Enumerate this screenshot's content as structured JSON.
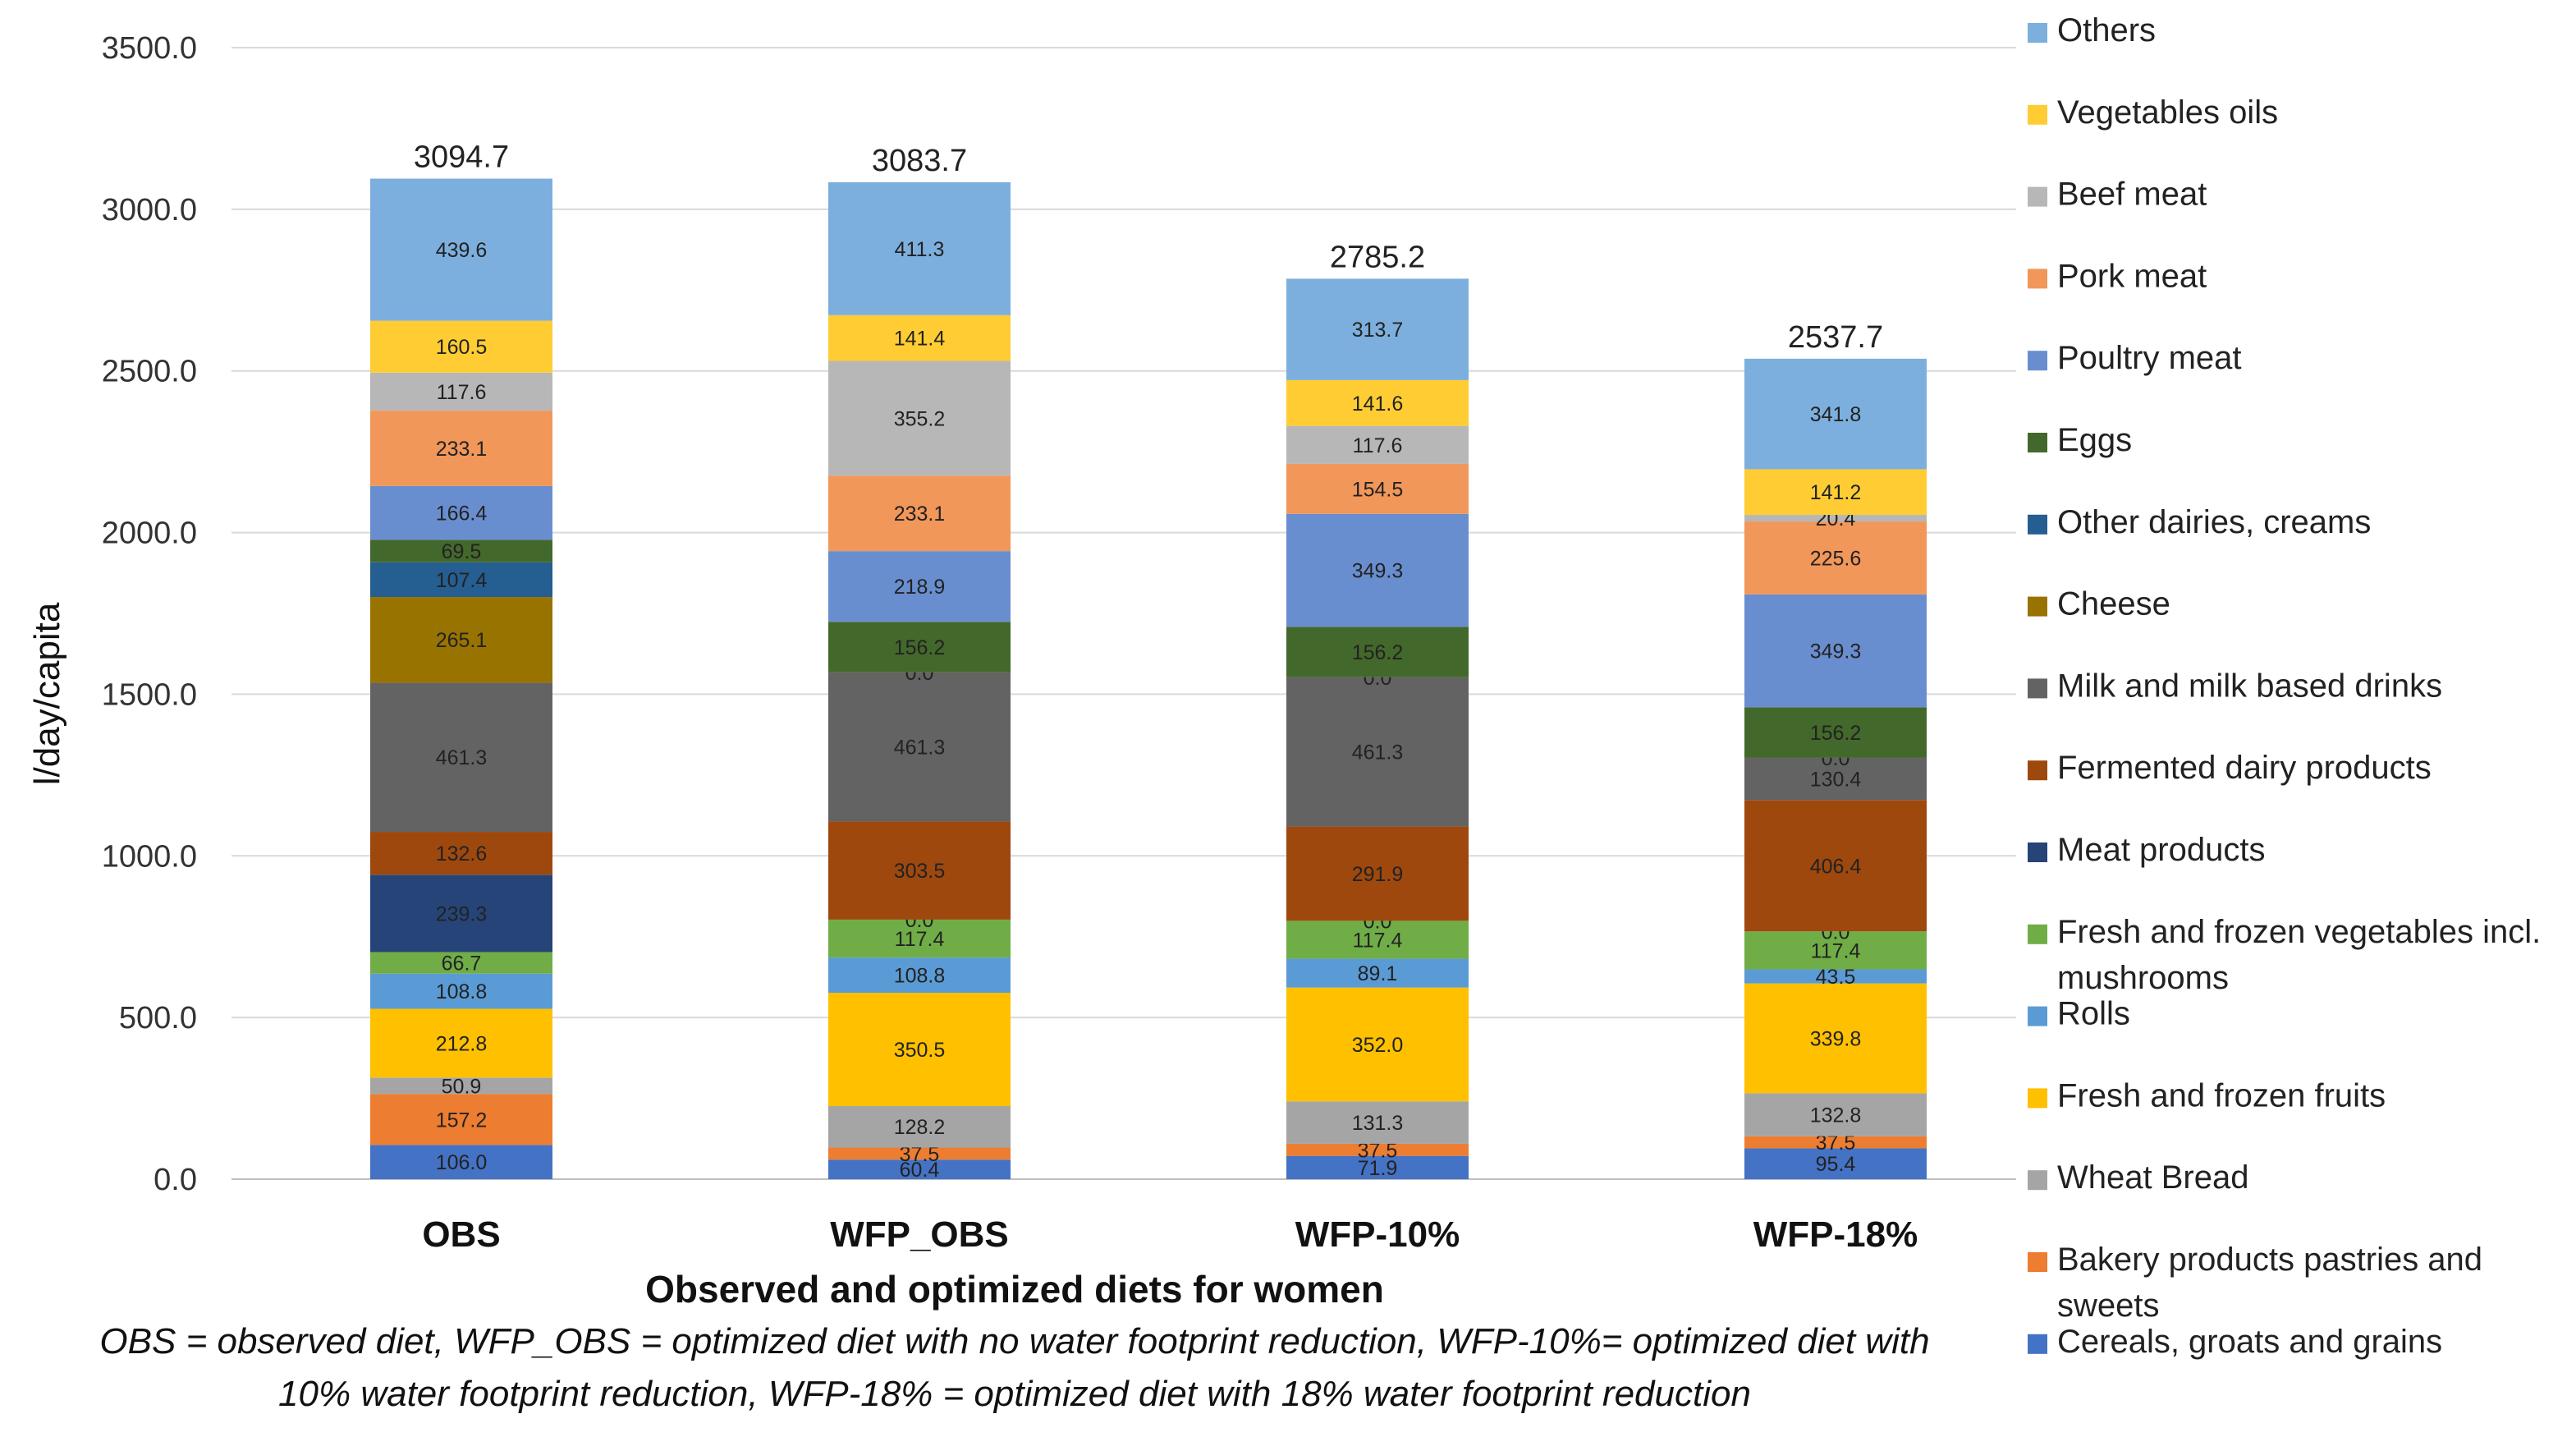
{
  "chart_data": {
    "type": "bar",
    "stacked": true,
    "title": "",
    "xlabel": "Observed and optimized diets for women",
    "ylabel": "l/day/capita",
    "ylim": [
      0,
      3500
    ],
    "yticks": [
      "0.0",
      "500.0",
      "1000.0",
      "1500.0",
      "2000.0",
      "2500.0",
      "3000.0",
      "3500.0"
    ],
    "grid": true,
    "legend_position": "right",
    "categories": [
      "OBS",
      "WFP_OBS",
      "WFP-10%",
      "WFP-18%"
    ],
    "totals": [
      "3094.7",
      "3083.7",
      "2785.2",
      "2537.7"
    ],
    "series": [
      {
        "name": "Cereals, groats and grains",
        "color": "#4472C4",
        "values": [
          106.0,
          60.4,
          71.9,
          95.4
        ],
        "labels": [
          "106.0",
          "60.4",
          "71.9",
          "95.4"
        ]
      },
      {
        "name": "Bakery products pastries and sweets",
        "color": "#ED7D31",
        "values": [
          157.2,
          37.5,
          37.5,
          37.5
        ],
        "labels": [
          "157.2",
          "37.5",
          "37.5",
          "37.5"
        ]
      },
      {
        "name": "Wheat Bread",
        "color": "#A5A5A5",
        "values": [
          50.9,
          128.2,
          131.3,
          132.8
        ],
        "labels": [
          "50.9",
          "128.2",
          "131.3",
          "132.8"
        ]
      },
      {
        "name": "Fresh and frozen fruits",
        "color": "#FFC000",
        "values": [
          212.8,
          350.5,
          352.0,
          339.8
        ],
        "labels": [
          "212.8",
          "350.5",
          "352.0",
          "339.8"
        ]
      },
      {
        "name": "Rolls",
        "color": "#5B9BD5",
        "values": [
          108.8,
          108.8,
          89.1,
          43.5
        ],
        "labels": [
          "108.8",
          "108.8",
          "89.1",
          "43.5"
        ]
      },
      {
        "name": "Fresh and frozen vegetables incl. mushrooms",
        "color": "#70AD47",
        "values": [
          66.7,
          117.4,
          117.4,
          117.4
        ],
        "labels": [
          "66.7",
          "117.4",
          "117.4",
          "117.4"
        ]
      },
      {
        "name": "Meat products",
        "color": "#264478",
        "values": [
          239.3,
          0.0,
          0.0,
          0.0
        ],
        "labels": [
          "239.3",
          "0.0",
          "0.0",
          "0.0"
        ]
      },
      {
        "name": "Fermented dairy products",
        "color": "#9E480E",
        "values": [
          132.6,
          303.5,
          291.9,
          406.4
        ],
        "labels": [
          "132.6",
          "303.5",
          "291.9",
          "406.4"
        ]
      },
      {
        "name": "Milk and milk based drinks",
        "color": "#636363",
        "values": [
          461.3,
          461.3,
          461.3,
          130.4
        ],
        "labels": [
          "461.3",
          "461.3",
          "461.3",
          "130.4"
        ]
      },
      {
        "name": "Cheese",
        "color": "#997300",
        "values": [
          265.1,
          0.0,
          0.0,
          0.0
        ],
        "labels": [
          "265.1",
          "0.0",
          "0.0",
          "0.0"
        ]
      },
      {
        "name": "Other dairies, creams",
        "color": "#255E91",
        "values": [
          107.4,
          0.0,
          0.0,
          0.0
        ],
        "labels": [
          "107.4",
          "",
          "",
          ""
        ]
      },
      {
        "name": "Eggs",
        "color": "#43682B",
        "values": [
          69.5,
          156.2,
          156.2,
          156.2
        ],
        "labels": [
          "69.5",
          "156.2",
          "156.2",
          "156.2"
        ]
      },
      {
        "name": "Poultry meat",
        "color": "#698ED0",
        "values": [
          166.4,
          218.9,
          349.3,
          349.3
        ],
        "labels": [
          "166.4",
          "218.9",
          "349.3",
          "349.3"
        ]
      },
      {
        "name": "Pork meat",
        "color": "#F1975A",
        "values": [
          233.1,
          233.1,
          154.5,
          225.6
        ],
        "labels": [
          "233.1",
          "233.1",
          "154.5",
          "225.6"
        ]
      },
      {
        "name": "Beef meat",
        "color": "#B7B7B7",
        "values": [
          117.6,
          355.2,
          117.6,
          20.4
        ],
        "labels": [
          "117.6",
          "355.2",
          "117.6",
          "20.4"
        ]
      },
      {
        "name": "Vegetables oils",
        "color": "#FFCD33",
        "values": [
          160.5,
          141.4,
          141.6,
          141.2
        ],
        "labels": [
          "160.5",
          "141.4",
          "141.6",
          "141.2"
        ]
      },
      {
        "name": "Others",
        "color": "#7CAFDD",
        "values": [
          439.6,
          411.3,
          313.7,
          341.8
        ],
        "labels": [
          "439.6",
          "411.3",
          "313.7",
          "341.8"
        ]
      }
    ],
    "legend_order": [
      "Others",
      "Vegetables oils",
      "Beef meat",
      "Pork meat",
      "Poultry meat",
      "Eggs",
      "Other dairies, creams",
      "Cheese",
      "Milk and milk based drinks",
      "Fermented dairy products",
      "Meat products",
      "Fresh and frozen vegetables incl. mushrooms",
      "Rolls",
      "Fresh and frozen fruits",
      "Wheat Bread",
      "Bakery products pastries and sweets",
      "Cereals, groats and grains"
    ],
    "footnote": [
      "OBS = observed diet, WFP_OBS = optimized diet with no water footprint reduction, WFP-10%= optimized diet with",
      "10% water footprint reduction, WFP-18% = optimized diet with 18% water footprint reduction"
    ]
  }
}
